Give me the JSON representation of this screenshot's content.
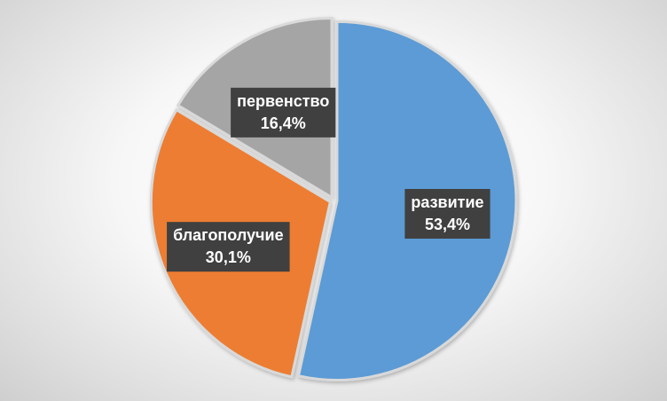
{
  "chart_data": {
    "type": "pie",
    "title": "",
    "categories": [
      "развитие",
      "благополучие",
      "первенство"
    ],
    "values": [
      53.4,
      30.1,
      16.4
    ],
    "value_labels": [
      "53,4%",
      "30,1%",
      "16,4%"
    ],
    "colors": [
      "#5b9bd5",
      "#ed7d31",
      "#a5a5a5"
    ],
    "label_background": "#404040",
    "start_angle": "12 o'clock",
    "direction": "clockwise",
    "slice_border_color": "#d9d9d9",
    "legend": "none"
  }
}
